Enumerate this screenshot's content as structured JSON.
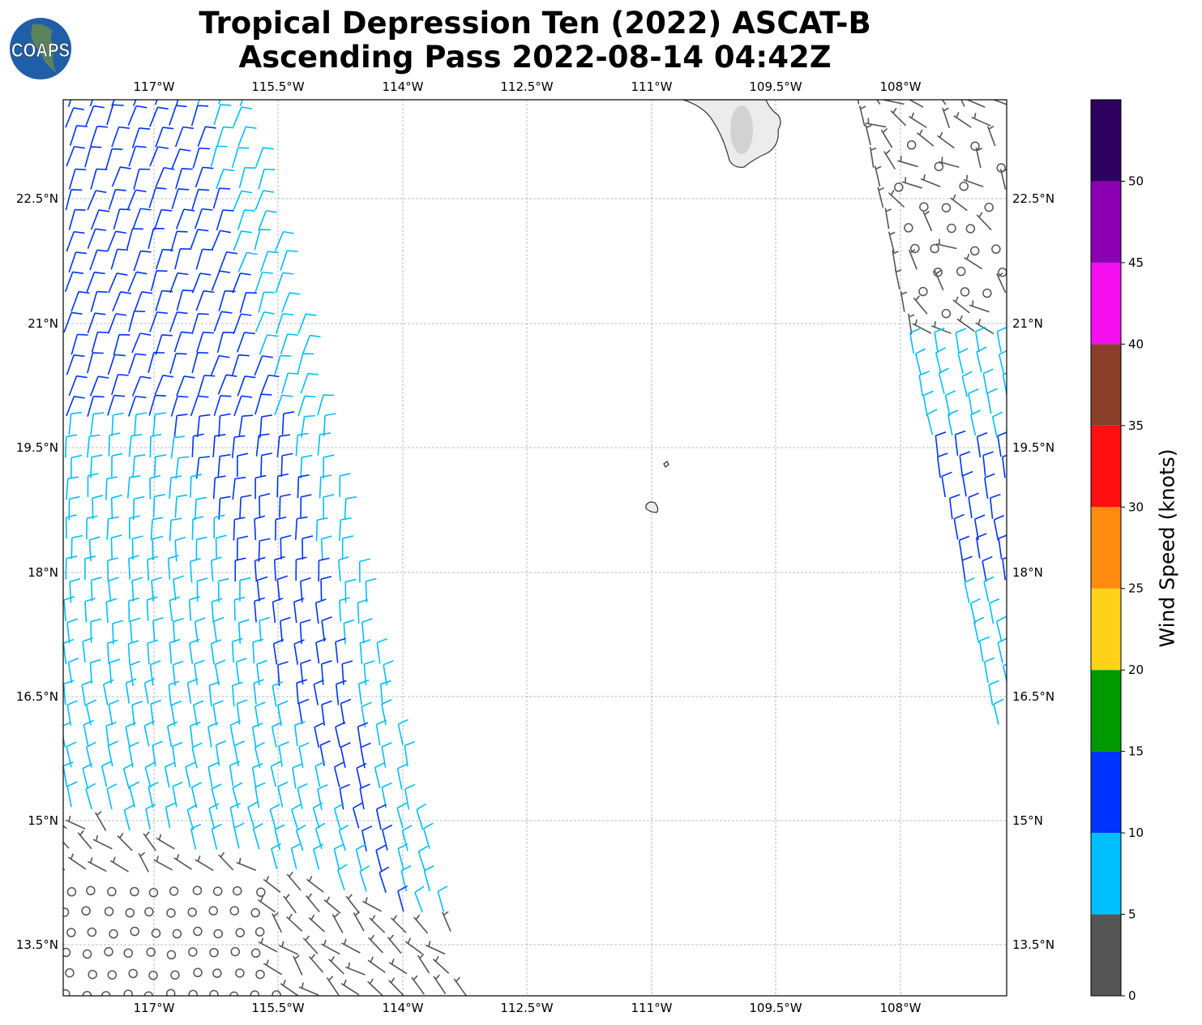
{
  "title_line1": "Tropical Depression Ten (2022) ASCAT-B",
  "title_line2": "Ascending Pass 2022-08-14 04:42Z",
  "logo_text": "COAPS",
  "lon_ticks": [
    "117°W",
    "115.5°W",
    "114°W",
    "112.5°W",
    "111°W",
    "109.5°W",
    "108°W"
  ],
  "lat_ticks": [
    "22.5°N",
    "21°N",
    "19.5°N",
    "18°N",
    "16.5°N",
    "15°N",
    "13.5°N"
  ],
  "colorbar": {
    "label": "Wind Speed (knots)",
    "ticks": [
      "0",
      "5",
      "10",
      "15",
      "20",
      "25",
      "30",
      "35",
      "40",
      "45",
      "50"
    ],
    "bins": [
      0,
      5,
      10,
      15,
      20,
      25,
      30,
      35,
      40,
      45,
      50,
      55
    ],
    "colors": [
      "#555555",
      "#00bfff",
      "#0033ff",
      "#009900",
      "#ffd21a",
      "#ff8c10",
      "#ff1010",
      "#8a3f2a",
      "#f50ff0",
      "#8b00b0",
      "#2e005e"
    ]
  },
  "map": {
    "lon_range": [
      -118.1,
      -106.7
    ],
    "lat_range": [
      12.9,
      23.7
    ],
    "gridlines": true,
    "land_color": "#e6e6e6"
  }
}
